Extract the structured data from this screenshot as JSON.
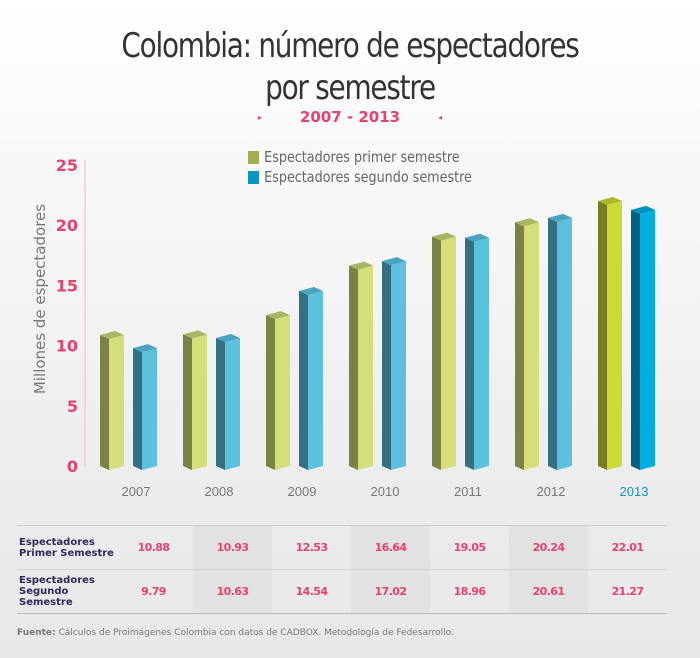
{
  "header": {
    "title_line1": "Colombia: número de espectadores",
    "title_line2": "por semestre",
    "subtitle": "2007 - 2013",
    "arrow_left": "▸",
    "arrow_right": "◂"
  },
  "legend": [
    {
      "label": "Espectadores primer semestre",
      "color": "#a2ac52"
    },
    {
      "label": "Espectadores segundo semestre",
      "color": "#0e94c2"
    }
  ],
  "chart_data": {
    "type": "bar",
    "title": "Colombia: número de espectadores por semestre",
    "subtitle": "2007 - 2013",
    "xlabel": "",
    "ylabel": "Millones de espectadores",
    "ylim": [
      0,
      25
    ],
    "yticks": [
      0,
      5,
      10,
      15,
      20,
      25
    ],
    "categories": [
      "2007",
      "2008",
      "2009",
      "2010",
      "2011",
      "2012",
      "2013"
    ],
    "highlight_category": "2013",
    "grid": false,
    "legend_position": "top-center",
    "series": [
      {
        "name": "Espectadores primer semestre",
        "values": [
          10.88,
          10.93,
          12.53,
          16.64,
          19.05,
          20.24,
          22.01
        ]
      },
      {
        "name": "Espectadores segundo semestre",
        "values": [
          9.79,
          10.63,
          14.54,
          17.02,
          18.96,
          20.61,
          21.27
        ]
      }
    ]
  },
  "colors": {
    "accent": "#e8416b",
    "axis_line": "#f2b8c6",
    "green_front": "#d4df7a",
    "green_side": "#7b8245",
    "green_top": "#aab562",
    "blue_front": "#5bc1df",
    "blue_side": "#346f82",
    "blue_top": "#4aa3c0",
    "green_front_hl": "#c9dc36",
    "green_side_hl": "#767f1f",
    "green_top_hl": "#a8b82a",
    "blue_front_hl": "#00aee0",
    "blue_side_hl": "#00617f",
    "blue_top_hl": "#0090bb",
    "xlabel": "#777777",
    "xlabel_hl": "#0e94c2"
  },
  "table": {
    "row_headers": [
      "Espectadores Primer Semestre",
      "Espectadores Segundo Semestre"
    ],
    "rows": [
      [
        "10.88",
        "10.93",
        "12.53",
        "16.64",
        "19.05",
        "20.24",
        "22.01"
      ],
      [
        "9.79",
        "10.63",
        "14.54",
        "17.02",
        "18.96",
        "20.61",
        "21.27"
      ]
    ]
  },
  "source": {
    "label": "Fuente:",
    "text": " Cálculos de Proimágenes Colombia con datos de CADBOX. Metodología de Fedesarrollo."
  }
}
